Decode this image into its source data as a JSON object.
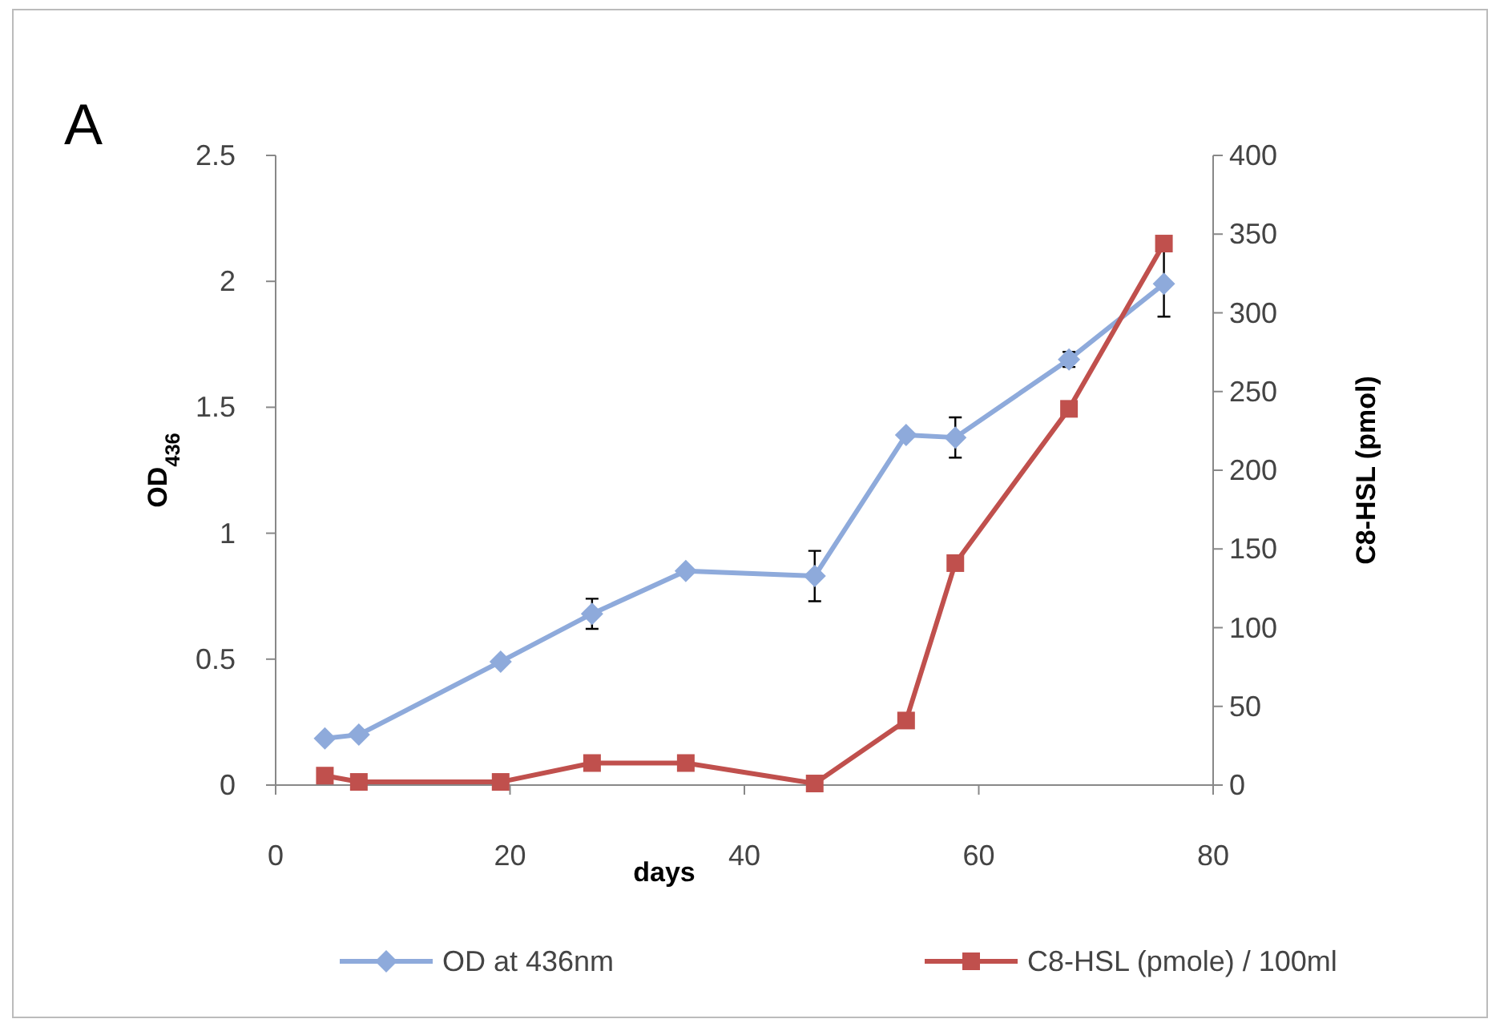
{
  "chart_data": {
    "type": "line",
    "annotations": [
      "A"
    ],
    "xlabel": "days",
    "ylabel": "OD$_{436}$",
    "y2label": "C8-HSL (pmol)",
    "xlim": [
      0,
      80
    ],
    "xticks": [
      0,
      20,
      40,
      60,
      80
    ],
    "ylim": [
      0,
      2.5
    ],
    "yticks": [
      0,
      0.5,
      1,
      1.5,
      2,
      2.5
    ],
    "y2lim": [
      0,
      400
    ],
    "y2ticks": [
      0,
      50,
      100,
      150,
      200,
      250,
      300,
      350,
      400
    ],
    "grid": false,
    "legend": "bottom",
    "marker": "diamond",
    "line_style": "solid",
    "series": [
      {
        "name": "OD at 436nm",
        "color": "#8eaadb",
        "marker": "diamond",
        "x": [
          4.2,
          7.1,
          19.2,
          27,
          35,
          46,
          53.8,
          58,
          67.7,
          75.8
        ],
        "values": [
          0.185,
          0.2,
          0.49,
          0.68,
          0.85,
          0.83,
          1.39,
          1.38,
          1.69,
          1.99
        ],
        "errors": [
          null,
          null,
          null,
          0.06,
          null,
          0.1,
          null,
          0.08,
          0.03,
          0.13
        ]
      },
      {
        "name": "C8-HSL (pmole) / 100ml",
        "color": "#c0504d",
        "marker": "square",
        "axis": "y2",
        "x": [
          4.2,
          7.1,
          19.2,
          27,
          35,
          46,
          53.8,
          58,
          67.7,
          75.8
        ],
        "values": [
          6,
          2,
          2,
          14,
          14,
          1,
          41,
          141,
          239,
          344
        ]
      }
    ]
  }
}
